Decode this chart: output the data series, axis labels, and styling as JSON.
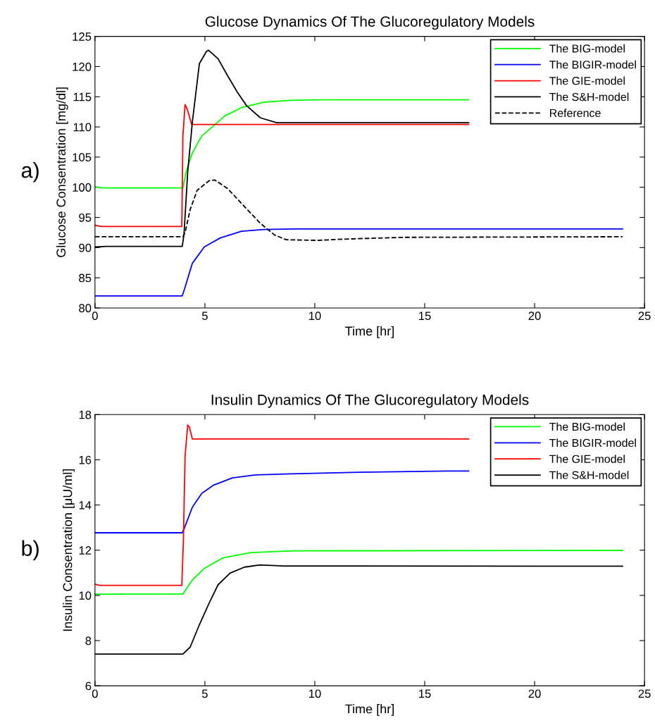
{
  "chart_data": [
    {
      "type": "line",
      "title": "Glucose Dynamics Of The Glucoregulatory Models",
      "xlabel": "Time [hr]",
      "ylabel": "Glucose Consentration [mg/dl]",
      "annotations": [
        "a)"
      ],
      "xlim": [
        0,
        25
      ],
      "xticks": [
        0,
        5,
        10,
        15,
        20,
        25
      ],
      "ylim": [
        80,
        125
      ],
      "yticks": [
        80,
        85,
        90,
        95,
        100,
        105,
        110,
        115,
        120,
        125
      ],
      "grid": false,
      "legend": "top right",
      "marker": "none",
      "series": [
        {
          "name": "The BIG-model",
          "color": "#00ff00",
          "line_style": "solid",
          "x": [
            0,
            0.3,
            4.0,
            4.15,
            4.43,
            4.86,
            5.4,
            5.9,
            6.67,
            7.7,
            8.9,
            10,
            17
          ],
          "values": [
            100.1,
            99.9,
            99.9,
            102.6,
            105.7,
            108.5,
            110.2,
            111.8,
            113.2,
            114.1,
            114.4,
            114.5,
            114.5
          ]
        },
        {
          "name": "The BIGIR-model",
          "color": "#0000ff",
          "line_style": "solid",
          "x": [
            0,
            3.97,
            4.07,
            4.43,
            4.97,
            5.7,
            6.67,
            7.7,
            9,
            24
          ],
          "values": [
            82.0,
            82.0,
            83.1,
            87.4,
            90.1,
            91.6,
            92.7,
            93.0,
            93.1,
            93.1
          ]
        },
        {
          "name": "The GIE-model",
          "color": "#ff0000",
          "line_style": "solid",
          "x": [
            0,
            0.3,
            3.95,
            4.0,
            4.1,
            4.2,
            4.4,
            17
          ],
          "values": [
            93.7,
            93.5,
            93.5,
            108.5,
            113.7,
            112.9,
            110.4,
            110.4
          ]
        },
        {
          "name": "The S&H-model",
          "color": "#000000",
          "line_style": "solid",
          "x": [
            0,
            0.5,
            3.97,
            4.05,
            4.22,
            4.43,
            4.75,
            5.07,
            5.17,
            5.6,
            6.03,
            6.47,
            6.9,
            7.53,
            8.27,
            17
          ],
          "values": [
            90.1,
            90.2,
            90.2,
            92.2,
            102.6,
            110.8,
            120.5,
            122.5,
            122.7,
            121.3,
            118.5,
            115.8,
            113.5,
            111.5,
            110.7,
            110.7
          ]
        },
        {
          "name": "Reference",
          "color": "#000000",
          "line_style": "dashed",
          "x": [
            0,
            4.0,
            4.1,
            4.33,
            4.65,
            5.2,
            5.45,
            6.03,
            6.8,
            7.53,
            8.17,
            8.7,
            10.1,
            11.3,
            14,
            24
          ],
          "values": [
            91.8,
            91.8,
            92.5,
            96.3,
            99.5,
            101.1,
            101.2,
            99.8,
            96.8,
            94.0,
            92.1,
            91.3,
            91.2,
            91.4,
            91.7,
            91.8
          ]
        }
      ]
    },
    {
      "type": "line",
      "title": "Insulin Dynamics Of The Glucoregulatory Models",
      "xlabel": "Time [hr]",
      "ylabel": "Insulin Consentration [μU/ml]",
      "annotations": [
        "b)"
      ],
      "xlim": [
        0,
        25
      ],
      "xticks": [
        0,
        5,
        10,
        15,
        20,
        25
      ],
      "ylim": [
        6,
        18
      ],
      "yticks": [
        6,
        8,
        10,
        12,
        14,
        16,
        18
      ],
      "grid": false,
      "legend": "top right",
      "marker": "none",
      "series": [
        {
          "name": "The BIG-model",
          "color": "#00ff00",
          "line_style": "solid",
          "x": [
            0,
            4.0,
            4.43,
            4.97,
            5.82,
            7.1,
            9,
            24
          ],
          "values": [
            10.05,
            10.06,
            10.68,
            11.19,
            11.66,
            11.89,
            11.97,
            11.99
          ]
        },
        {
          "name": "The BIGIR-model",
          "color": "#0000ff",
          "line_style": "solid",
          "x": [
            0,
            3.97,
            4.06,
            4.43,
            4.86,
            5.4,
            6.25,
            7.3,
            8.9,
            12,
            16,
            17
          ],
          "values": [
            12.77,
            12.77,
            12.96,
            13.9,
            14.52,
            14.88,
            15.2,
            15.33,
            15.38,
            15.45,
            15.5,
            15.5
          ]
        },
        {
          "name": "The GIE-model",
          "color": "#ff0000",
          "line_style": "solid",
          "x": [
            0,
            0.2,
            3.95,
            4.02,
            4.1,
            4.22,
            4.3,
            4.43,
            17
          ],
          "values": [
            10.5,
            10.44,
            10.44,
            12.34,
            16.18,
            17.54,
            17.44,
            16.92,
            16.92
          ]
        },
        {
          "name": "The S&H-model",
          "color": "#000000",
          "line_style": "solid",
          "x": [
            0,
            4.0,
            4.33,
            4.75,
            5.18,
            5.6,
            6.15,
            6.8,
            7.5,
            8.6,
            24
          ],
          "values": [
            7.4,
            7.4,
            7.71,
            8.7,
            9.63,
            10.47,
            10.99,
            11.25,
            11.35,
            11.3,
            11.29
          ]
        }
      ]
    }
  ]
}
